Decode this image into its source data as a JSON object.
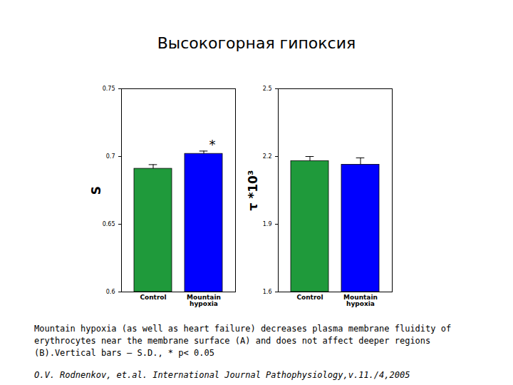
{
  "title": "Высокогорная гипоксия",
  "chart_data": [
    {
      "type": "bar",
      "ylabel": "S",
      "categories": [
        "Control",
        "Mountain hypoxia"
      ],
      "values": [
        0.691,
        0.702
      ],
      "errors": [
        0.003,
        0.002
      ],
      "colors": [
        "#1f9a3b",
        "#0000ff"
      ],
      "ylim": [
        0.6,
        0.75
      ],
      "yticks": [
        0.6,
        0.65,
        0.7,
        0.75
      ],
      "annotations": [
        {
          "category": "Mountain hypoxia",
          "text": "*"
        }
      ],
      "grid": false
    },
    {
      "type": "bar",
      "ylabel": "τ *10³",
      "categories": [
        "Control",
        "Mountain hypoxia"
      ],
      "values": [
        2.18,
        2.164
      ],
      "errors": [
        0.02,
        0.03
      ],
      "colors": [
        "#1f9a3b",
        "#0000ff"
      ],
      "ylim": [
        1.6,
        2.5
      ],
      "yticks": [
        1.6,
        1.9,
        2.2,
        2.5
      ],
      "annotations": [],
      "grid": false
    }
  ],
  "caption": "Mountain hypoxia (as well as heart failure) decreases plasma membrane fluidity of erythrocytes near the membrane surface (A) and does not affect deeper regions (B).Vertical bars – S.D., * p< 0.05",
  "source": "O.V. Rodnenkov, et.al. International Journal Pathophysiology,v.11./4,2005"
}
